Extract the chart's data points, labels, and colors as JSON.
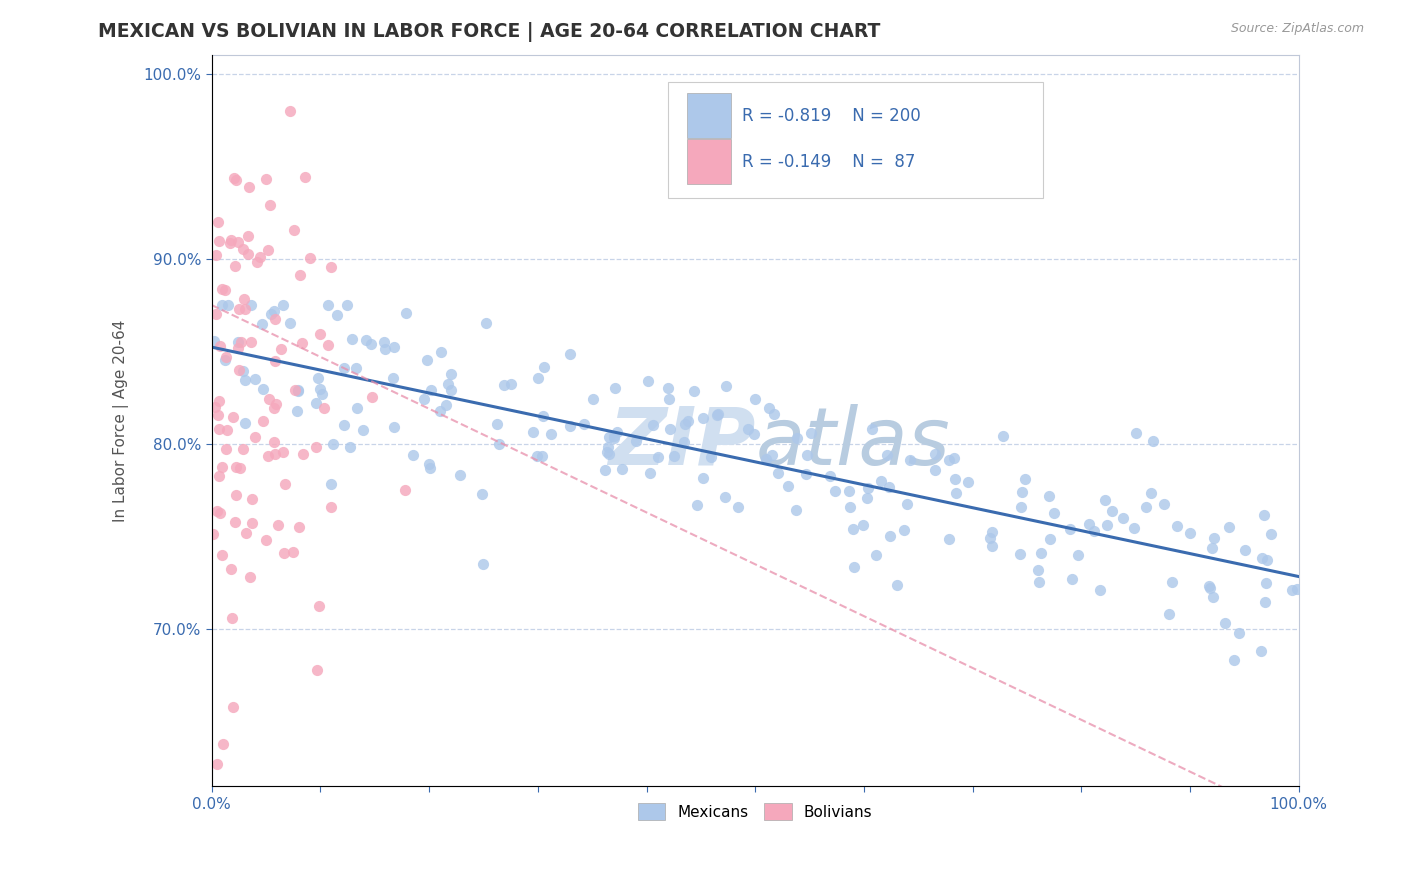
{
  "title": "MEXICAN VS BOLIVIAN IN LABOR FORCE | AGE 20-64 CORRELATION CHART",
  "source": "Source: ZipAtlas.com",
  "ylabel": "In Labor Force | Age 20-64",
  "xlim": [
    0.0,
    1.0
  ],
  "ylim": [
    0.615,
    1.01
  ],
  "x_ticks": [
    0.0,
    0.1,
    0.2,
    0.3,
    0.4,
    0.5,
    0.6,
    0.7,
    0.8,
    0.9,
    1.0
  ],
  "x_tick_labels": [
    "0.0%",
    "",
    "",
    "",
    "",
    "",
    "",
    "",
    "",
    "",
    "100.0%"
  ],
  "y_tick_labels": [
    "70.0%",
    "80.0%",
    "90.0%",
    "100.0%"
  ],
  "y_ticks": [
    0.7,
    0.8,
    0.9,
    1.0
  ],
  "mexican_color": "#adc8ea",
  "bolivian_color": "#f5a8bc",
  "mexican_line_color": "#3a6baf",
  "bolivian_line_color": "#e88fab",
  "legend_text_color": "#3a6baf",
  "watermark_color": "#d0dff0",
  "R_mexican": -0.819,
  "N_mexican": 200,
  "R_bolivian": -0.149,
  "N_bolivian": 87,
  "background_color": "#ffffff",
  "grid_color": "#c8d4e8",
  "title_color": "#333333",
  "source_color": "#999999"
}
